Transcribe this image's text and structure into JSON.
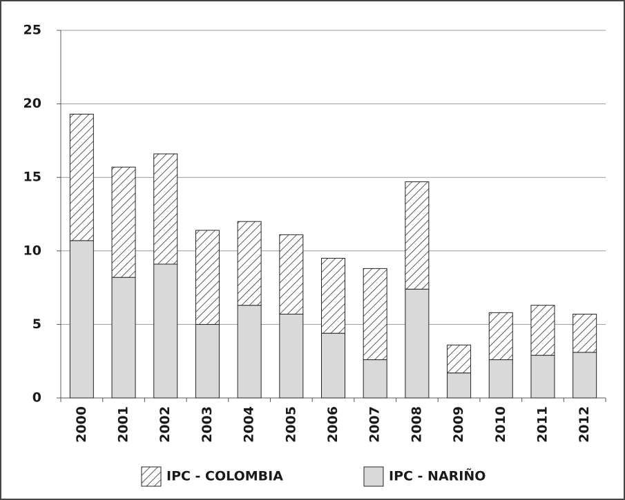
{
  "chart_data": {
    "type": "stacked_bar",
    "categories": [
      "2000",
      "2001",
      "2002",
      "2003",
      "2004",
      "2005",
      "2006",
      "2007",
      "2008",
      "2009",
      "2010",
      "2011",
      "2012"
    ],
    "series": [
      {
        "name": "IPC - COLOMBIA",
        "color": "#ffffff",
        "pattern": "hatch",
        "values": [
          8.6,
          7.5,
          7.5,
          6.4,
          5.7,
          5.4,
          5.1,
          6.2,
          7.3,
          1.9,
          3.2,
          3.4,
          2.6
        ]
      },
      {
        "name": "IPC - NARIÑO",
        "color": "#d9d9d9",
        "pattern": "solid",
        "values": [
          10.7,
          8.2,
          9.1,
          5.0,
          6.3,
          5.7,
          4.4,
          2.6,
          7.4,
          1.7,
          2.6,
          2.9,
          3.1
        ]
      }
    ],
    "stack_order": "last-at-bottom",
    "ylim": [
      0,
      25
    ],
    "yticks": [
      0,
      5,
      10,
      15,
      20,
      25
    ],
    "grid": true,
    "legend": "bottom"
  }
}
